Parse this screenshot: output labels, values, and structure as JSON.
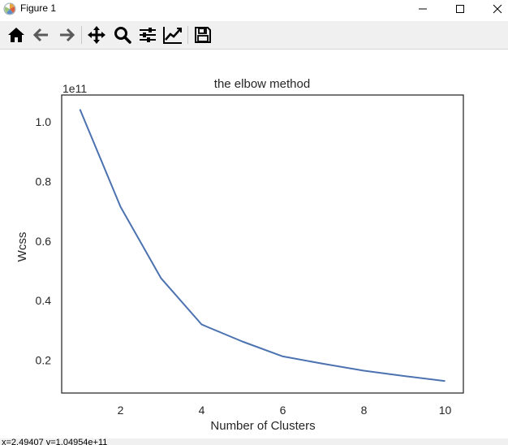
{
  "window": {
    "title": "Figure 1"
  },
  "toolbar": {
    "buttons": [
      {
        "name": "home-button",
        "icon": "home-icon"
      },
      {
        "name": "back-button",
        "icon": "arrow-left-icon"
      },
      {
        "name": "forward-button",
        "icon": "arrow-right-icon"
      },
      {
        "name": "pan-button",
        "icon": "move-icon"
      },
      {
        "name": "zoom-button",
        "icon": "magnifier-icon"
      },
      {
        "name": "subplots-button",
        "icon": "sliders-icon"
      },
      {
        "name": "edit-axes-button",
        "icon": "line-chart-icon"
      },
      {
        "name": "save-button",
        "icon": "floppy-disk-icon"
      }
    ]
  },
  "statusbar": {
    "text": "x=2.49407    y=1.04954e+11"
  },
  "chart_data": {
    "type": "line",
    "title": "the elbow method",
    "xlabel": "Number of Clusters",
    "ylabel": "Wcss",
    "offset_text": "1e11",
    "x": [
      1,
      2,
      3,
      4,
      5,
      6,
      7,
      8,
      9,
      10
    ],
    "series": [
      {
        "values": [
          1.042,
          0.715,
          0.475,
          0.32,
          0.263,
          0.213,
          0.188,
          0.165,
          0.147,
          0.13
        ],
        "color": "#4c72b0"
      }
    ],
    "xlim": [
      0.55,
      10.45
    ],
    "ylim": [
      0.09,
      1.09
    ],
    "xticks": [
      2,
      4,
      6,
      8,
      10
    ],
    "xtick_labels": [
      "2",
      "4",
      "6",
      "8",
      "10"
    ],
    "yticks": [
      0.2,
      0.4,
      0.6,
      0.8,
      1.0
    ],
    "ytick_labels": [
      "0.2",
      "0.4",
      "0.6",
      "0.8",
      "1.0"
    ],
    "grid": false
  }
}
